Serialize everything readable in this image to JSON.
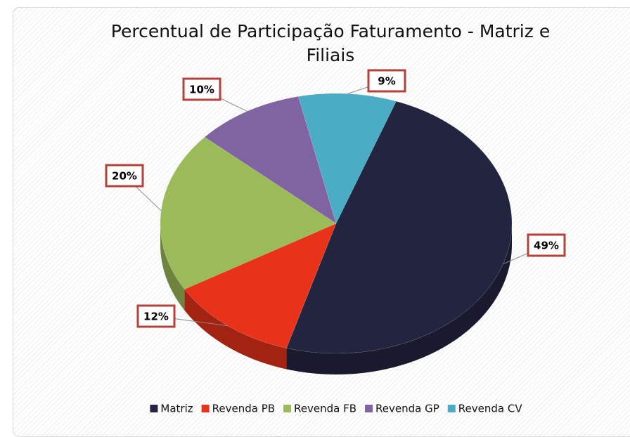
{
  "chart_data": {
    "type": "pie",
    "title": "Percentual de Participação Faturamento - Matriz e Filiais",
    "categories": [
      "Matriz",
      "Revenda PB",
      "Revenda FB",
      "Revenda GP",
      "Revenda CV"
    ],
    "values": [
      49,
      12,
      20,
      10,
      9
    ],
    "value_labels": [
      "49%",
      "12%",
      "20%",
      "10%",
      "9%"
    ],
    "colors": [
      "#232540",
      "#e8321a",
      "#9bbb59",
      "#8064a2",
      "#4bacc6"
    ],
    "legend": "bottom"
  }
}
